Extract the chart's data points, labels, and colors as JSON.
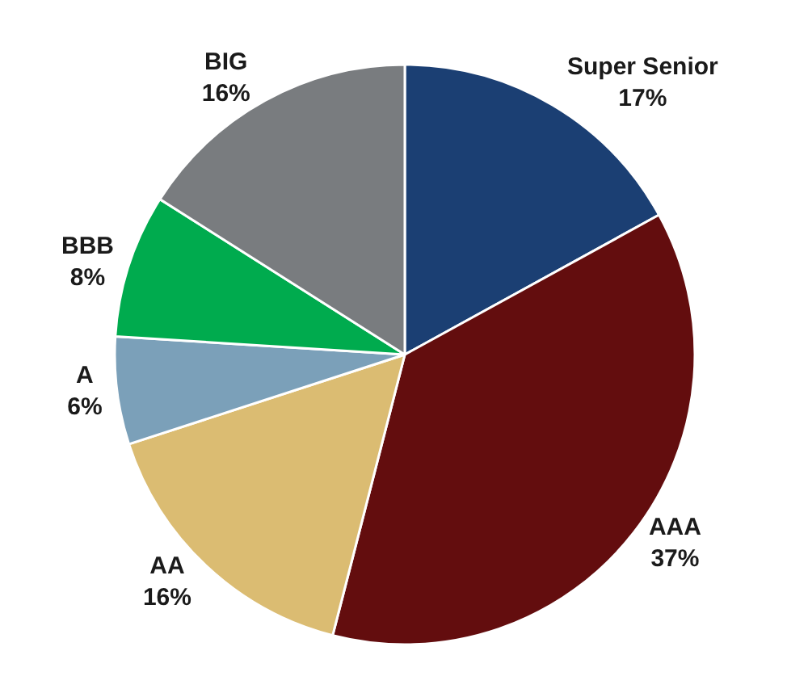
{
  "chart_data": {
    "type": "pie",
    "categories": [
      "Super Senior",
      "AAA",
      "AA",
      "A",
      "BBB",
      "BIG"
    ],
    "values": [
      17,
      37,
      16,
      6,
      8,
      16
    ],
    "value_labels": [
      "17%",
      "37%",
      "16%",
      "6%",
      "8%",
      "16%"
    ],
    "colors": [
      "#1b3f73",
      "#630d0e",
      "#dbbc72",
      "#7ba0b9",
      "#00ab4e",
      "#797c7f"
    ],
    "legend": false
  }
}
